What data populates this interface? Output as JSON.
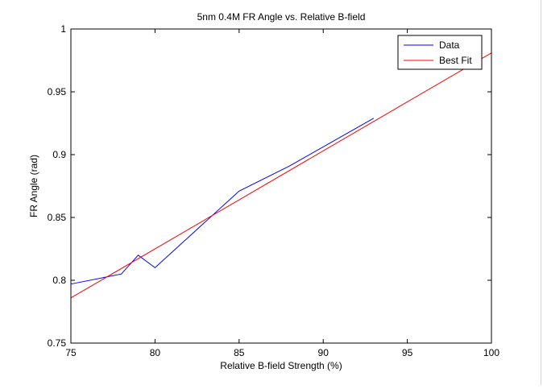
{
  "chart_data": {
    "type": "line",
    "title": "5nm 0.4M FR Angle vs. Relative B-field",
    "xlabel": "Relative B-field Strength (%)",
    "ylabel": "FR Angle (rad)",
    "xlim": [
      75,
      100
    ],
    "ylim": [
      0.75,
      1.0
    ],
    "xticks": [
      75,
      80,
      85,
      90,
      95,
      100
    ],
    "yticks": [
      0.75,
      0.8,
      0.85,
      0.9,
      0.95,
      1.0
    ],
    "xtick_labels": [
      "75",
      "80",
      "85",
      "90",
      "95",
      "100"
    ],
    "ytick_labels": [
      "0.75",
      "0.8",
      "0.85",
      "0.9",
      "0.95",
      "1"
    ],
    "grid": false,
    "legend_position": "top-right",
    "series": [
      {
        "name": "Data",
        "color": "#0000ff",
        "x": [
          75,
          78,
          79,
          80,
          85,
          88,
          93
        ],
        "y": [
          0.797,
          0.805,
          0.82,
          0.81,
          0.871,
          0.891,
          0.929
        ]
      },
      {
        "name": "Best Fit",
        "color": "#ff0000",
        "x": [
          75,
          100
        ],
        "y": [
          0.786,
          0.981
        ]
      }
    ]
  }
}
